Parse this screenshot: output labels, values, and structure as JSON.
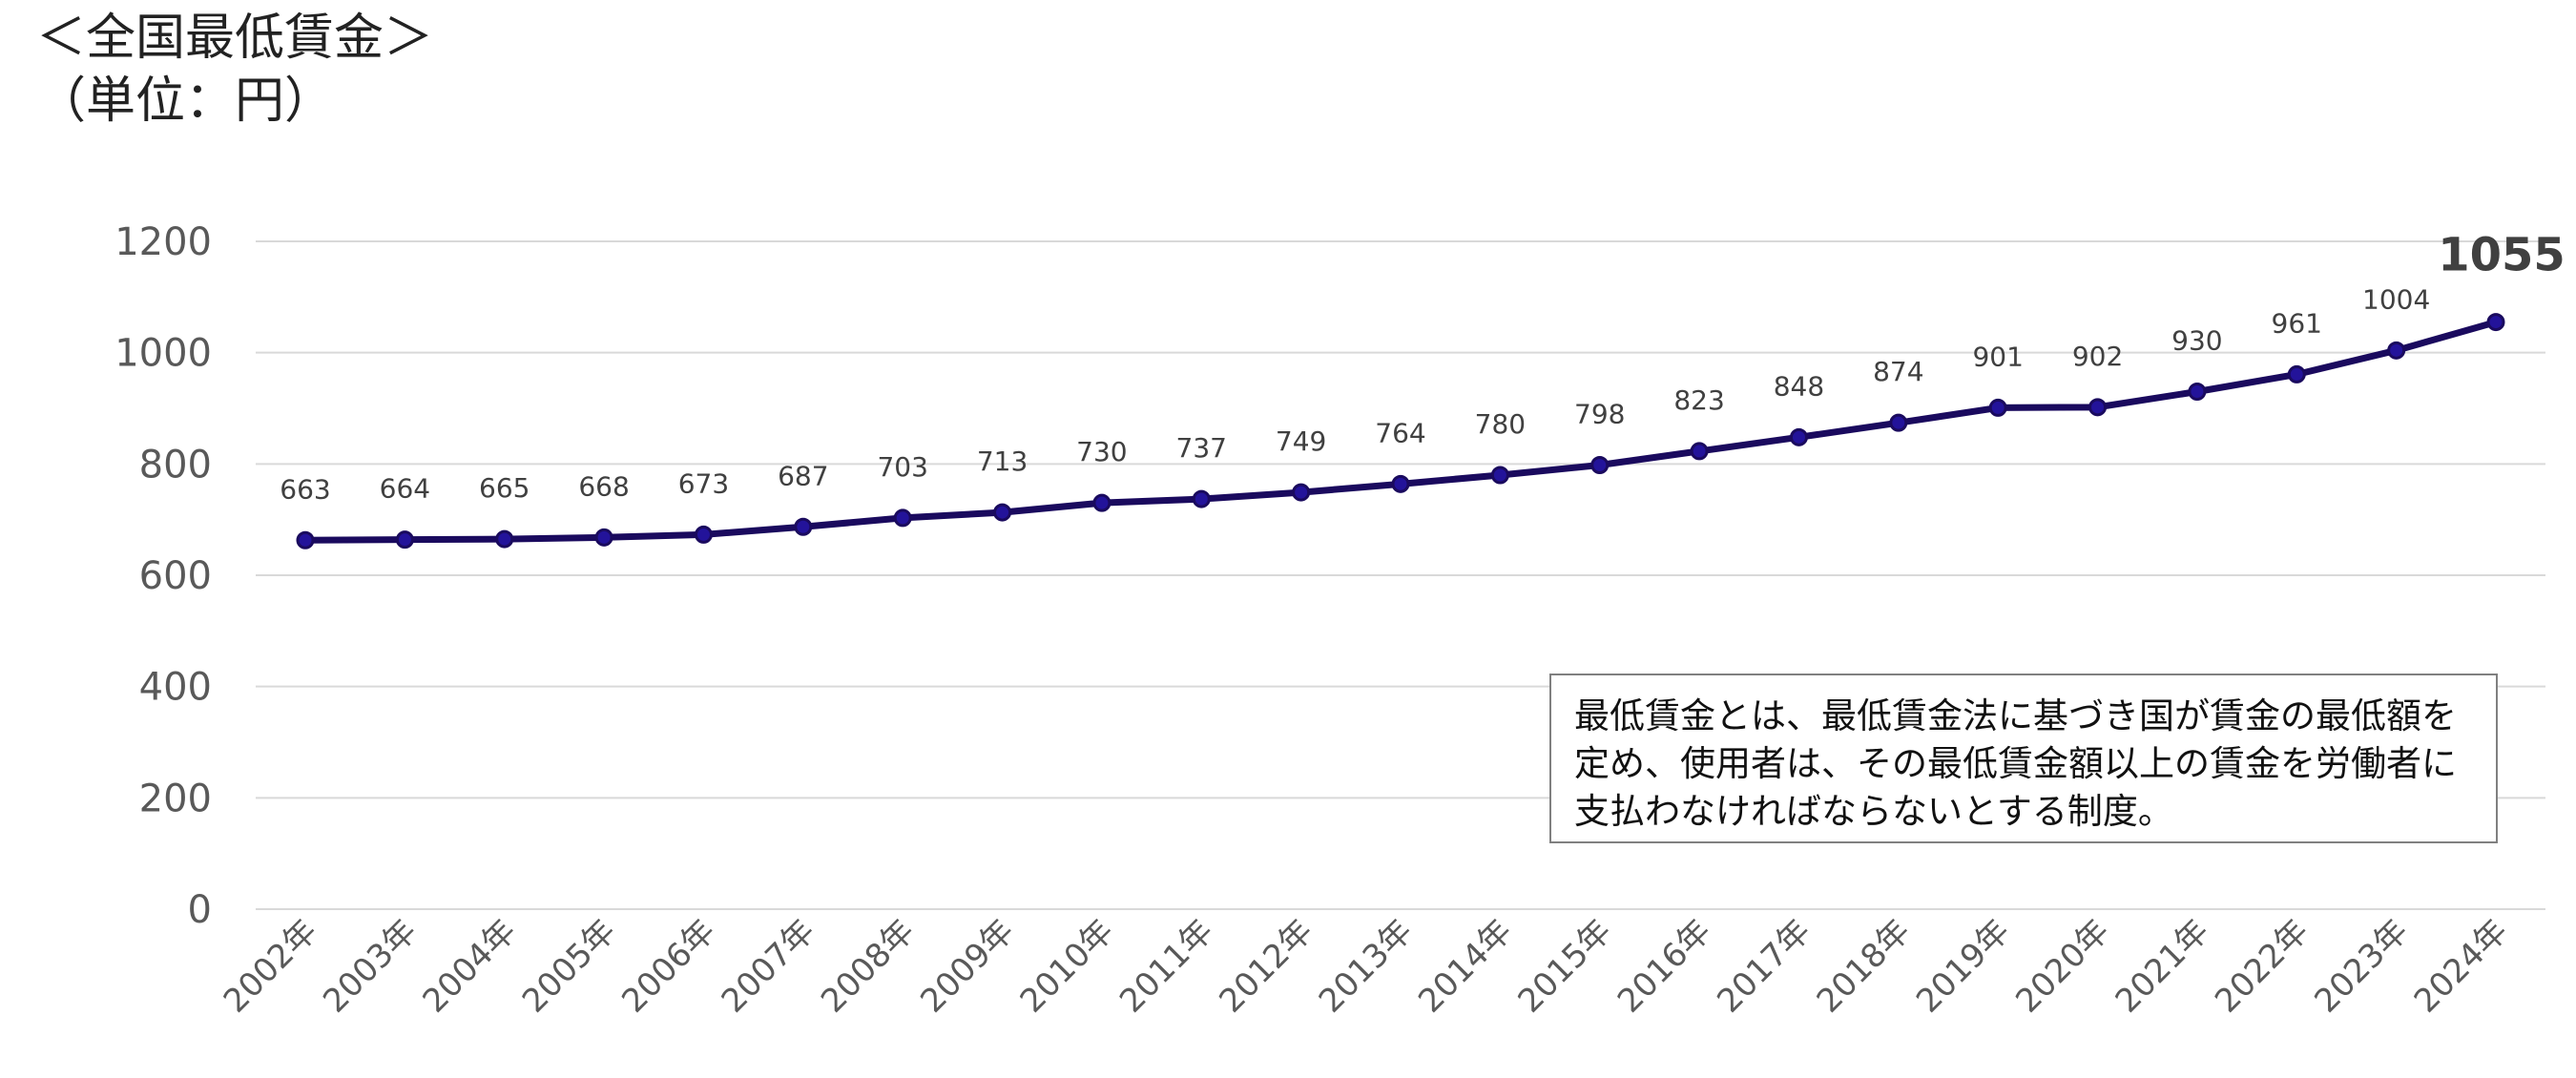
{
  "header": {
    "title": "＜全国最低賃金＞",
    "unit": "（単位：円）"
  },
  "note": {
    "lines": [
      "最低賃金とは、最低賃金法に基づき国が賃金の最低額を",
      "定め、使用者は、その最低賃金額以上の賃金を労働者に",
      "支払わなければならないとする制度。"
    ]
  },
  "colors": {
    "line": "#1a0a5e",
    "marker_fill": "#23139a",
    "grid": "#d9d9d9",
    "tick_text": "#595959",
    "label_text": "#404040"
  },
  "chart_data": {
    "type": "line",
    "title": "＜全国最低賃金＞",
    "ylabel": "（単位：円）",
    "ylim": [
      0,
      1200
    ],
    "yticks": [
      0,
      200,
      400,
      600,
      800,
      1000,
      1200
    ],
    "grid": true,
    "categories": [
      "2002年",
      "2003年",
      "2004年",
      "2005年",
      "2006年",
      "2007年",
      "2008年",
      "2009年",
      "2010年",
      "2011年",
      "2012年",
      "2013年",
      "2014年",
      "2015年",
      "2016年",
      "2017年",
      "2018年",
      "2019年",
      "2020年",
      "2021年",
      "2022年",
      "2023年",
      "2024年"
    ],
    "series": [
      {
        "values": [
          663,
          664,
          665,
          668,
          673,
          687,
          703,
          713,
          730,
          737,
          749,
          764,
          780,
          798,
          823,
          848,
          874,
          901,
          902,
          930,
          961,
          1004,
          1055
        ]
      }
    ]
  }
}
